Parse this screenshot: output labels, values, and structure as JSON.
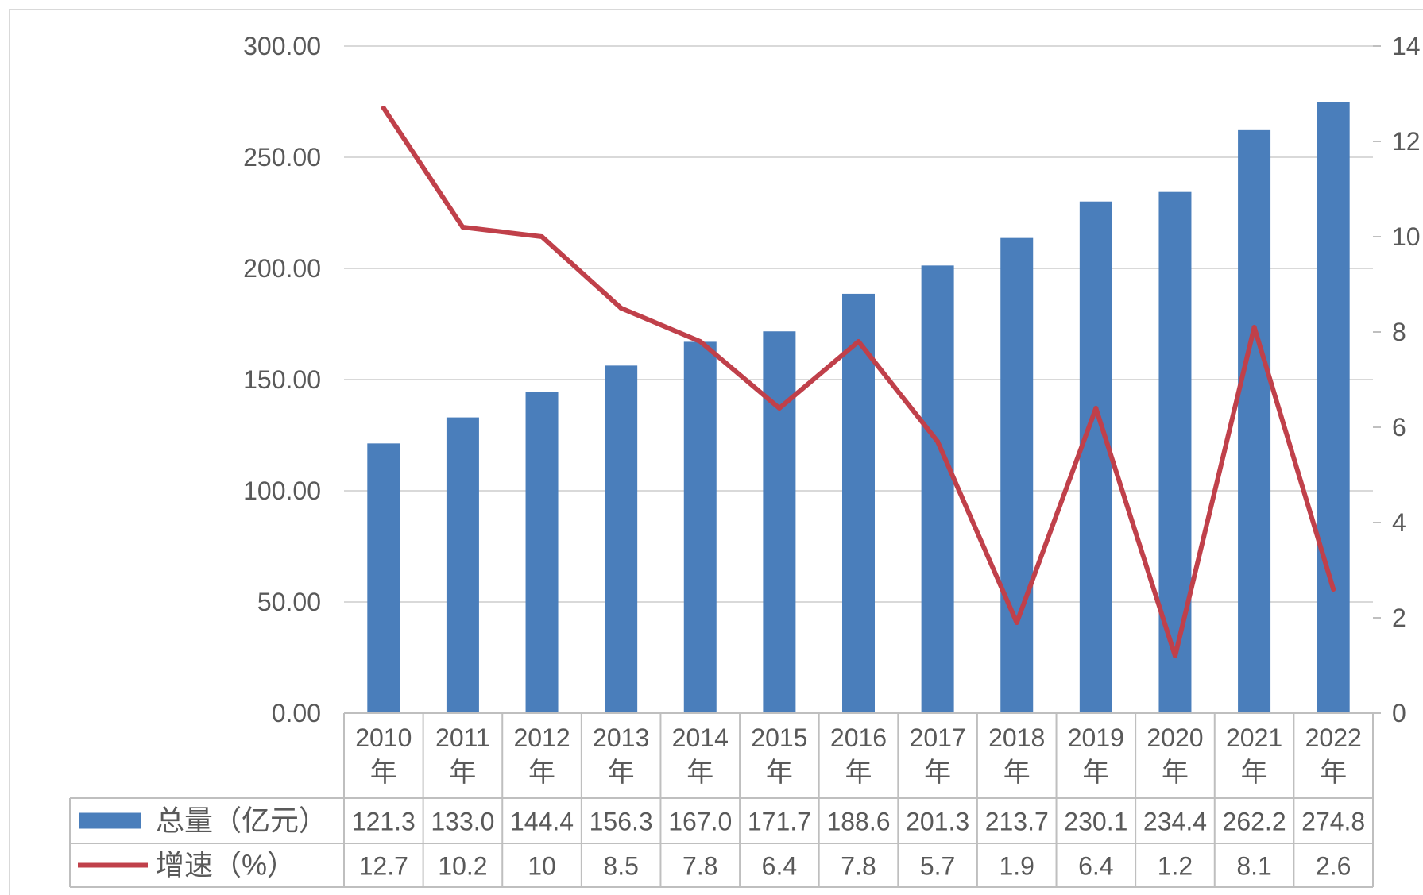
{
  "chart_data": {
    "type": "bar",
    "categories": [
      "2010年",
      "2011年",
      "2012年",
      "2013年",
      "2014年",
      "2015年",
      "2016年",
      "2017年",
      "2018年",
      "2019年",
      "2020年",
      "2021年",
      "2022年"
    ],
    "category_years": [
      "2010",
      "2011",
      "2012",
      "2013",
      "2014",
      "2015",
      "2016",
      "2017",
      "2018",
      "2019",
      "2020",
      "2021",
      "2022"
    ],
    "category_suffix": "年",
    "series": [
      {
        "name": "总量（亿元）",
        "type": "bar",
        "axis": "left",
        "color": "#4a7ebb",
        "values": [
          121.3,
          133.0,
          144.4,
          156.3,
          167.0,
          171.7,
          188.6,
          201.3,
          213.7,
          230.1,
          234.4,
          262.2,
          274.8
        ],
        "display_values": [
          "121.3",
          "133.0",
          "144.4",
          "156.3",
          "167.0",
          "171.7",
          "188.6",
          "201.3",
          "213.7",
          "230.1",
          "234.4",
          "262.2",
          "274.8"
        ]
      },
      {
        "name": "增速（%）",
        "type": "line",
        "axis": "right",
        "color": "#c0404a",
        "values": [
          12.7,
          10.2,
          10,
          8.5,
          7.8,
          6.4,
          7.8,
          5.7,
          1.9,
          6.4,
          1.2,
          8.1,
          2.6
        ],
        "display_values": [
          "12.7",
          "10.2",
          "10",
          "8.5",
          "7.8",
          "6.4",
          "7.8",
          "5.7",
          "1.9",
          "6.4",
          "1.2",
          "8.1",
          "2.6"
        ]
      }
    ],
    "y_left": {
      "ylim": [
        0,
        300
      ],
      "ticks": [
        "0.00",
        "50.00",
        "100.00",
        "150.00",
        "200.00",
        "250.00",
        "300.00"
      ]
    },
    "y_right": {
      "ylim": [
        0,
        14
      ],
      "ticks": [
        "0",
        "2",
        "4",
        "6",
        "8",
        "10",
        "12",
        "14"
      ]
    },
    "grid": true,
    "legend": "data-table"
  }
}
